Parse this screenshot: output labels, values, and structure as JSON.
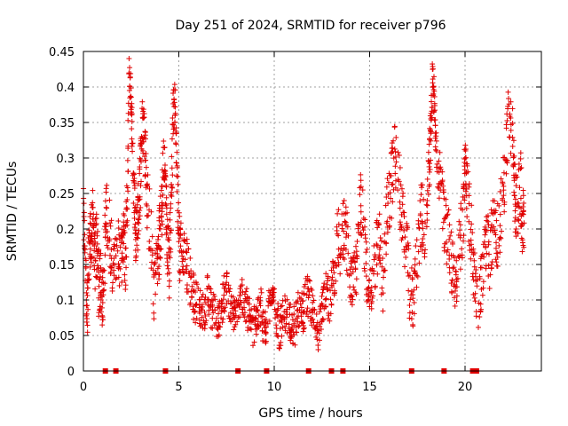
{
  "chart_data": {
    "type": "scatter",
    "title": "Day 251 of 2024, SRMTID for receiver p796",
    "xlabel": "GPS time / hours",
    "ylabel": "SRMTID / TECUs",
    "xlim": [
      0,
      24
    ],
    "ylim": [
      0,
      0.45
    ],
    "xticks": [
      0,
      5,
      10,
      15,
      20
    ],
    "xtick_labels": [
      "0",
      "5",
      "10",
      "15",
      "20"
    ],
    "yticks": [
      0,
      0.05,
      0.1,
      0.15,
      0.2,
      0.25,
      0.3,
      0.35,
      0.4,
      0.45
    ],
    "ytick_labels": [
      "0",
      "0.05",
      "0.1",
      "0.15",
      "0.2",
      "0.25",
      "0.3",
      "0.35",
      "0.4",
      "0.45"
    ],
    "grid": true,
    "marker": "+",
    "color": "#e00000",
    "series": [
      {
        "name": "SRMTID",
        "x": [
          0.0,
          0.1,
          0.2,
          0.3,
          0.4,
          0.5,
          0.6,
          0.7,
          0.8,
          0.9,
          1.0,
          1.1,
          1.2,
          1.4,
          1.6,
          1.8,
          2.0,
          2.1,
          2.2,
          2.3,
          2.4,
          2.5,
          2.6,
          2.7,
          2.8,
          2.9,
          3.0,
          3.1,
          3.2,
          3.3,
          3.5,
          3.7,
          3.9,
          4.0,
          4.1,
          4.2,
          4.3,
          4.4,
          4.5,
          4.6,
          4.7,
          4.8,
          4.9,
          5.0,
          5.1,
          5.3,
          5.5,
          5.7,
          5.9,
          6.1,
          6.3,
          6.5,
          6.7,
          6.9,
          7.1,
          7.3,
          7.5,
          7.7,
          7.9,
          8.1,
          8.3,
          8.5,
          8.7,
          8.9,
          9.1,
          9.3,
          9.5,
          9.7,
          9.9,
          10.1,
          10.3,
          10.5,
          10.7,
          10.9,
          11.1,
          11.3,
          11.5,
          11.7,
          11.9,
          12.1,
          12.3,
          12.5,
          12.7,
          12.9,
          13.1,
          13.3,
          13.5,
          13.7,
          13.9,
          14.1,
          14.3,
          14.5,
          14.7,
          14.9,
          15.1,
          15.3,
          15.5,
          15.7,
          15.9,
          16.1,
          16.3,
          16.5,
          16.7,
          16.9,
          17.1,
          17.3,
          17.5,
          17.7,
          17.9,
          18.1,
          18.2,
          18.3,
          18.4,
          18.5,
          18.7,
          18.9,
          19.1,
          19.3,
          19.5,
          19.7,
          19.9,
          20.0,
          20.1,
          20.3,
          20.5,
          20.7,
          20.9,
          21.1,
          21.3,
          21.5,
          21.7,
          21.9,
          22.1,
          22.3,
          22.5,
          22.6,
          22.7,
          22.9,
          23.0
        ],
        "y": [
          0.22,
          0.14,
          0.09,
          0.17,
          0.19,
          0.21,
          0.16,
          0.18,
          0.12,
          0.13,
          0.1,
          0.15,
          0.23,
          0.19,
          0.14,
          0.17,
          0.16,
          0.2,
          0.15,
          0.25,
          0.42,
          0.38,
          0.29,
          0.22,
          0.18,
          0.24,
          0.28,
          0.35,
          0.33,
          0.26,
          0.2,
          0.12,
          0.16,
          0.19,
          0.22,
          0.31,
          0.26,
          0.18,
          0.15,
          0.23,
          0.36,
          0.39,
          0.28,
          0.18,
          0.17,
          0.16,
          0.14,
          0.11,
          0.1,
          0.09,
          0.08,
          0.11,
          0.09,
          0.08,
          0.07,
          0.1,
          0.12,
          0.09,
          0.08,
          0.07,
          0.11,
          0.09,
          0.08,
          0.06,
          0.07,
          0.09,
          0.05,
          0.08,
          0.12,
          0.07,
          0.06,
          0.09,
          0.08,
          0.07,
          0.06,
          0.09,
          0.08,
          0.11,
          0.1,
          0.07,
          0.05,
          0.08,
          0.11,
          0.1,
          0.13,
          0.19,
          0.17,
          0.21,
          0.15,
          0.12,
          0.14,
          0.24,
          0.2,
          0.13,
          0.11,
          0.16,
          0.18,
          0.13,
          0.22,
          0.25,
          0.31,
          0.27,
          0.22,
          0.18,
          0.12,
          0.1,
          0.17,
          0.22,
          0.2,
          0.29,
          0.33,
          0.41,
          0.38,
          0.3,
          0.27,
          0.22,
          0.19,
          0.15,
          0.12,
          0.18,
          0.21,
          0.3,
          0.26,
          0.2,
          0.13,
          0.09,
          0.14,
          0.18,
          0.16,
          0.22,
          0.19,
          0.23,
          0.28,
          0.36,
          0.33,
          0.25,
          0.22,
          0.27,
          0.21
        ],
        "y_noise_amp": [
          0.04,
          0.04,
          0.05,
          0.04,
          0.05,
          0.04,
          0.05,
          0.05,
          0.04,
          0.04,
          0.04,
          0.05,
          0.05,
          0.05,
          0.04,
          0.05,
          0.04,
          0.05,
          0.05,
          0.05,
          0.03,
          0.03,
          0.04,
          0.05,
          0.05,
          0.05,
          0.04,
          0.04,
          0.04,
          0.05,
          0.05,
          0.04,
          0.05,
          0.05,
          0.05,
          0.04,
          0.04,
          0.05,
          0.05,
          0.05,
          0.04,
          0.03,
          0.04,
          0.05,
          0.04,
          0.04,
          0.04,
          0.04,
          0.03,
          0.03,
          0.03,
          0.03,
          0.03,
          0.03,
          0.03,
          0.03,
          0.03,
          0.03,
          0.03,
          0.03,
          0.03,
          0.03,
          0.03,
          0.03,
          0.03,
          0.03,
          0.03,
          0.03,
          0.03,
          0.03,
          0.03,
          0.03,
          0.03,
          0.03,
          0.03,
          0.03,
          0.03,
          0.03,
          0.03,
          0.03,
          0.03,
          0.03,
          0.03,
          0.03,
          0.04,
          0.05,
          0.05,
          0.05,
          0.04,
          0.04,
          0.04,
          0.05,
          0.05,
          0.04,
          0.04,
          0.05,
          0.05,
          0.04,
          0.05,
          0.05,
          0.04,
          0.05,
          0.05,
          0.05,
          0.04,
          0.04,
          0.05,
          0.05,
          0.05,
          0.05,
          0.04,
          0.03,
          0.03,
          0.04,
          0.04,
          0.05,
          0.05,
          0.04,
          0.04,
          0.05,
          0.05,
          0.04,
          0.05,
          0.05,
          0.04,
          0.04,
          0.04,
          0.05,
          0.05,
          0.05,
          0.05,
          0.05,
          0.05,
          0.04,
          0.04,
          0.05,
          0.05,
          0.05,
          0.05
        ],
        "zero_markers_x": [
          1.15,
          1.7,
          4.3,
          8.1,
          9.6,
          11.8,
          13.0,
          13.6,
          17.2,
          18.9,
          20.4,
          20.5,
          20.6
        ]
      }
    ]
  }
}
